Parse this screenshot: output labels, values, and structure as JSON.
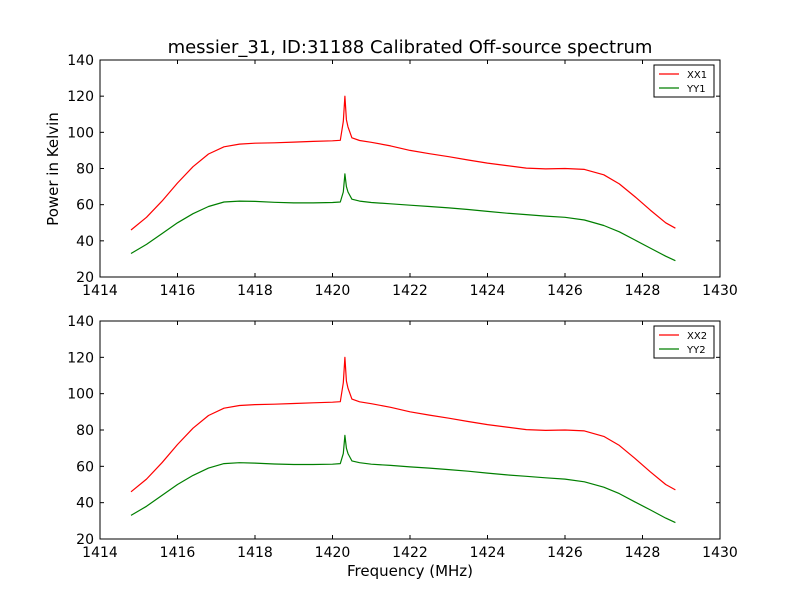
{
  "title": "messier_31, ID:31188 Calibrated Off-source spectrum",
  "ylabel": "Power in Kelvin",
  "xlabel": "Frequency (MHz)",
  "chart_data": [
    {
      "type": "line",
      "xlim": [
        1414,
        1430
      ],
      "ylim": [
        20,
        140
      ],
      "xticks": [
        1414,
        1416,
        1418,
        1420,
        1422,
        1424,
        1426,
        1428,
        1430
      ],
      "yticks": [
        20,
        40,
        60,
        80,
        100,
        120,
        140
      ],
      "grid": false,
      "legend": "top-right",
      "series": [
        {
          "name": "XX1",
          "color": "#ff0000",
          "x": [
            1414.8,
            1415.2,
            1415.6,
            1416.0,
            1416.4,
            1416.8,
            1417.2,
            1417.6,
            1418.0,
            1418.5,
            1419.0,
            1419.5,
            1420.0,
            1420.2,
            1420.28,
            1420.32,
            1420.36,
            1420.4,
            1420.5,
            1420.7,
            1421.0,
            1421.5,
            1422.0,
            1422.5,
            1423.0,
            1423.5,
            1424.0,
            1424.5,
            1425.0,
            1425.5,
            1426.0,
            1426.5,
            1427.0,
            1427.4,
            1427.8,
            1428.2,
            1428.6,
            1428.85
          ],
          "values": [
            46,
            53,
            62,
            72,
            81,
            88,
            92,
            93.5,
            94,
            94.2,
            94.6,
            95,
            95.3,
            95.6,
            106,
            120,
            107,
            103,
            97,
            95.5,
            94.5,
            92.5,
            90,
            88.2,
            86.5,
            84.7,
            83,
            81.6,
            80.2,
            79.8,
            80,
            79.5,
            76.5,
            71.5,
            64.5,
            57,
            50,
            47
          ]
        },
        {
          "name": "YY1",
          "color": "#007f00",
          "x": [
            1414.8,
            1415.2,
            1415.6,
            1416.0,
            1416.4,
            1416.8,
            1417.2,
            1417.6,
            1418.0,
            1418.5,
            1419.0,
            1419.5,
            1420.0,
            1420.2,
            1420.28,
            1420.32,
            1420.36,
            1420.4,
            1420.5,
            1420.7,
            1421.0,
            1421.5,
            1422.0,
            1422.5,
            1423.0,
            1423.5,
            1424.0,
            1424.5,
            1425.0,
            1425.5,
            1426.0,
            1426.5,
            1427.0,
            1427.4,
            1427.8,
            1428.2,
            1428.6,
            1428.85
          ],
          "values": [
            33,
            38,
            44,
            50,
            55,
            59,
            61.5,
            62,
            61.8,
            61.3,
            61,
            61,
            61.2,
            61.5,
            67,
            77,
            70,
            67,
            63,
            62,
            61.2,
            60.5,
            59.7,
            59,
            58.2,
            57.3,
            56.3,
            55.3,
            54.5,
            53.7,
            53,
            51.5,
            48.5,
            45,
            40.5,
            36,
            31.5,
            29
          ]
        }
      ]
    },
    {
      "type": "line",
      "xlim": [
        1414,
        1430
      ],
      "ylim": [
        20,
        140
      ],
      "xticks": [
        1414,
        1416,
        1418,
        1420,
        1422,
        1424,
        1426,
        1428,
        1430
      ],
      "yticks": [
        20,
        40,
        60,
        80,
        100,
        120,
        140
      ],
      "grid": false,
      "legend": "top-right",
      "series": [
        {
          "name": "XX2",
          "color": "#ff0000",
          "x": [
            1414.8,
            1415.2,
            1415.6,
            1416.0,
            1416.4,
            1416.8,
            1417.2,
            1417.6,
            1418.0,
            1418.5,
            1419.0,
            1419.5,
            1420.0,
            1420.2,
            1420.28,
            1420.32,
            1420.36,
            1420.4,
            1420.5,
            1420.7,
            1421.0,
            1421.5,
            1422.0,
            1422.5,
            1423.0,
            1423.5,
            1424.0,
            1424.5,
            1425.0,
            1425.5,
            1426.0,
            1426.5,
            1427.0,
            1427.4,
            1427.8,
            1428.2,
            1428.6,
            1428.85
          ],
          "values": [
            46,
            53,
            62,
            72,
            81,
            88,
            92,
            93.5,
            94,
            94.2,
            94.6,
            95,
            95.3,
            95.6,
            106,
            120,
            107,
            103,
            97,
            95.5,
            94.5,
            92.5,
            90,
            88.2,
            86.5,
            84.7,
            83,
            81.6,
            80.2,
            79.8,
            80,
            79.5,
            76.5,
            71.5,
            64.5,
            57,
            50,
            47
          ]
        },
        {
          "name": "YY2",
          "color": "#007f00",
          "x": [
            1414.8,
            1415.2,
            1415.6,
            1416.0,
            1416.4,
            1416.8,
            1417.2,
            1417.6,
            1418.0,
            1418.5,
            1419.0,
            1419.5,
            1420.0,
            1420.2,
            1420.28,
            1420.32,
            1420.36,
            1420.4,
            1420.5,
            1420.7,
            1421.0,
            1421.5,
            1422.0,
            1422.5,
            1423.0,
            1423.5,
            1424.0,
            1424.5,
            1425.0,
            1425.5,
            1426.0,
            1426.5,
            1427.0,
            1427.4,
            1427.8,
            1428.2,
            1428.6,
            1428.85
          ],
          "values": [
            33,
            38,
            44,
            50,
            55,
            59,
            61.5,
            62,
            61.8,
            61.3,
            61,
            61,
            61.2,
            61.5,
            67,
            77,
            70,
            67,
            63,
            62,
            61.2,
            60.5,
            59.7,
            59,
            58.2,
            57.3,
            56.3,
            55.3,
            54.5,
            53.7,
            53,
            51.5,
            48.5,
            45,
            40.5,
            36,
            31.5,
            29
          ]
        }
      ]
    }
  ]
}
